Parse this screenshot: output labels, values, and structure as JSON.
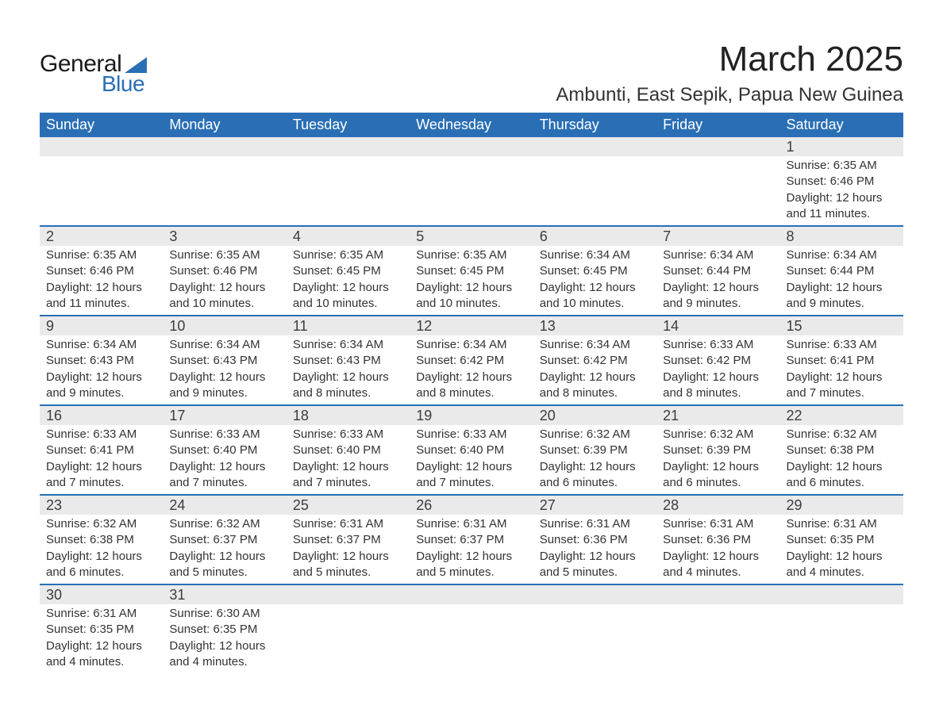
{
  "brand": {
    "general": "General",
    "blue": "Blue"
  },
  "title": "March 2025",
  "location": "Ambunti, East Sepik, Papua New Guinea",
  "colors": {
    "header_bg": "#2a6fb5",
    "header_text": "#ffffff",
    "daynum_bg": "#eaeaea",
    "border": "#2a6fb5",
    "text": "#333333",
    "background": "#ffffff"
  },
  "days_of_week": [
    "Sunday",
    "Monday",
    "Tuesday",
    "Wednesday",
    "Thursday",
    "Friday",
    "Saturday"
  ],
  "weeks": [
    [
      null,
      null,
      null,
      null,
      null,
      null,
      {
        "n": "1",
        "sr": "Sunrise: 6:35 AM",
        "ss": "Sunset: 6:46 PM",
        "d1": "Daylight: 12 hours",
        "d2": "and 11 minutes."
      }
    ],
    [
      {
        "n": "2",
        "sr": "Sunrise: 6:35 AM",
        "ss": "Sunset: 6:46 PM",
        "d1": "Daylight: 12 hours",
        "d2": "and 11 minutes."
      },
      {
        "n": "3",
        "sr": "Sunrise: 6:35 AM",
        "ss": "Sunset: 6:46 PM",
        "d1": "Daylight: 12 hours",
        "d2": "and 10 minutes."
      },
      {
        "n": "4",
        "sr": "Sunrise: 6:35 AM",
        "ss": "Sunset: 6:45 PM",
        "d1": "Daylight: 12 hours",
        "d2": "and 10 minutes."
      },
      {
        "n": "5",
        "sr": "Sunrise: 6:35 AM",
        "ss": "Sunset: 6:45 PM",
        "d1": "Daylight: 12 hours",
        "d2": "and 10 minutes."
      },
      {
        "n": "6",
        "sr": "Sunrise: 6:34 AM",
        "ss": "Sunset: 6:45 PM",
        "d1": "Daylight: 12 hours",
        "d2": "and 10 minutes."
      },
      {
        "n": "7",
        "sr": "Sunrise: 6:34 AM",
        "ss": "Sunset: 6:44 PM",
        "d1": "Daylight: 12 hours",
        "d2": "and 9 minutes."
      },
      {
        "n": "8",
        "sr": "Sunrise: 6:34 AM",
        "ss": "Sunset: 6:44 PM",
        "d1": "Daylight: 12 hours",
        "d2": "and 9 minutes."
      }
    ],
    [
      {
        "n": "9",
        "sr": "Sunrise: 6:34 AM",
        "ss": "Sunset: 6:43 PM",
        "d1": "Daylight: 12 hours",
        "d2": "and 9 minutes."
      },
      {
        "n": "10",
        "sr": "Sunrise: 6:34 AM",
        "ss": "Sunset: 6:43 PM",
        "d1": "Daylight: 12 hours",
        "d2": "and 9 minutes."
      },
      {
        "n": "11",
        "sr": "Sunrise: 6:34 AM",
        "ss": "Sunset: 6:43 PM",
        "d1": "Daylight: 12 hours",
        "d2": "and 8 minutes."
      },
      {
        "n": "12",
        "sr": "Sunrise: 6:34 AM",
        "ss": "Sunset: 6:42 PM",
        "d1": "Daylight: 12 hours",
        "d2": "and 8 minutes."
      },
      {
        "n": "13",
        "sr": "Sunrise: 6:34 AM",
        "ss": "Sunset: 6:42 PM",
        "d1": "Daylight: 12 hours",
        "d2": "and 8 minutes."
      },
      {
        "n": "14",
        "sr": "Sunrise: 6:33 AM",
        "ss": "Sunset: 6:42 PM",
        "d1": "Daylight: 12 hours",
        "d2": "and 8 minutes."
      },
      {
        "n": "15",
        "sr": "Sunrise: 6:33 AM",
        "ss": "Sunset: 6:41 PM",
        "d1": "Daylight: 12 hours",
        "d2": "and 7 minutes."
      }
    ],
    [
      {
        "n": "16",
        "sr": "Sunrise: 6:33 AM",
        "ss": "Sunset: 6:41 PM",
        "d1": "Daylight: 12 hours",
        "d2": "and 7 minutes."
      },
      {
        "n": "17",
        "sr": "Sunrise: 6:33 AM",
        "ss": "Sunset: 6:40 PM",
        "d1": "Daylight: 12 hours",
        "d2": "and 7 minutes."
      },
      {
        "n": "18",
        "sr": "Sunrise: 6:33 AM",
        "ss": "Sunset: 6:40 PM",
        "d1": "Daylight: 12 hours",
        "d2": "and 7 minutes."
      },
      {
        "n": "19",
        "sr": "Sunrise: 6:33 AM",
        "ss": "Sunset: 6:40 PM",
        "d1": "Daylight: 12 hours",
        "d2": "and 7 minutes."
      },
      {
        "n": "20",
        "sr": "Sunrise: 6:32 AM",
        "ss": "Sunset: 6:39 PM",
        "d1": "Daylight: 12 hours",
        "d2": "and 6 minutes."
      },
      {
        "n": "21",
        "sr": "Sunrise: 6:32 AM",
        "ss": "Sunset: 6:39 PM",
        "d1": "Daylight: 12 hours",
        "d2": "and 6 minutes."
      },
      {
        "n": "22",
        "sr": "Sunrise: 6:32 AM",
        "ss": "Sunset: 6:38 PM",
        "d1": "Daylight: 12 hours",
        "d2": "and 6 minutes."
      }
    ],
    [
      {
        "n": "23",
        "sr": "Sunrise: 6:32 AM",
        "ss": "Sunset: 6:38 PM",
        "d1": "Daylight: 12 hours",
        "d2": "and 6 minutes."
      },
      {
        "n": "24",
        "sr": "Sunrise: 6:32 AM",
        "ss": "Sunset: 6:37 PM",
        "d1": "Daylight: 12 hours",
        "d2": "and 5 minutes."
      },
      {
        "n": "25",
        "sr": "Sunrise: 6:31 AM",
        "ss": "Sunset: 6:37 PM",
        "d1": "Daylight: 12 hours",
        "d2": "and 5 minutes."
      },
      {
        "n": "26",
        "sr": "Sunrise: 6:31 AM",
        "ss": "Sunset: 6:37 PM",
        "d1": "Daylight: 12 hours",
        "d2": "and 5 minutes."
      },
      {
        "n": "27",
        "sr": "Sunrise: 6:31 AM",
        "ss": "Sunset: 6:36 PM",
        "d1": "Daylight: 12 hours",
        "d2": "and 5 minutes."
      },
      {
        "n": "28",
        "sr": "Sunrise: 6:31 AM",
        "ss": "Sunset: 6:36 PM",
        "d1": "Daylight: 12 hours",
        "d2": "and 4 minutes."
      },
      {
        "n": "29",
        "sr": "Sunrise: 6:31 AM",
        "ss": "Sunset: 6:35 PM",
        "d1": "Daylight: 12 hours",
        "d2": "and 4 minutes."
      }
    ],
    [
      {
        "n": "30",
        "sr": "Sunrise: 6:31 AM",
        "ss": "Sunset: 6:35 PM",
        "d1": "Daylight: 12 hours",
        "d2": "and 4 minutes."
      },
      {
        "n": "31",
        "sr": "Sunrise: 6:30 AM",
        "ss": "Sunset: 6:35 PM",
        "d1": "Daylight: 12 hours",
        "d2": "and 4 minutes."
      },
      null,
      null,
      null,
      null,
      null
    ]
  ]
}
